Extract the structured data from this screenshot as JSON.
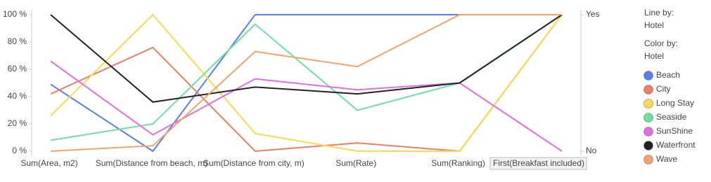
{
  "chart_data": {
    "type": "parallel",
    "categories": [
      "Sum(Area, m2)",
      "Sum(Distance from beach, m)",
      "Sum(Distance from city, m)",
      "Sum(Rate)",
      "Sum(Ranking)",
      "First(Breakfast included)"
    ],
    "ylim": [
      0,
      100
    ],
    "yticks": [
      {
        "value": 0,
        "label": "0 %"
      },
      {
        "value": 20,
        "label": "20 %"
      },
      {
        "value": 40,
        "label": "40 %"
      },
      {
        "value": 60,
        "label": "60 %"
      },
      {
        "value": 80,
        "label": "80 %"
      },
      {
        "value": 100,
        "label": "100 %"
      }
    ],
    "y2lim": [
      0,
      100
    ],
    "y2ticks": [
      {
        "value": 0,
        "label": "No"
      },
      {
        "value": 100,
        "label": "Yes"
      }
    ],
    "legend": {
      "line_by_label": "Line by:",
      "line_by": "Hotel",
      "color_by_label": "Color by:",
      "color_by": "Hotel"
    },
    "series": [
      {
        "name": "Beach",
        "color": "#5b7ee8",
        "values": [
          49,
          0,
          100,
          100,
          100,
          100
        ]
      },
      {
        "name": "City",
        "color": "#f07c64",
        "values": [
          42,
          76,
          0,
          6,
          0,
          100
        ]
      },
      {
        "name": "Long Stay",
        "color": "#f9d94f",
        "values": [
          26,
          100,
          13,
          0,
          0,
          100
        ]
      },
      {
        "name": "Seaside",
        "color": "#6fe0a0",
        "values": [
          8,
          20,
          93,
          30,
          50,
          100
        ]
      },
      {
        "name": "SunShine",
        "color": "#e06ee0",
        "values": [
          66,
          12,
          53,
          45,
          50,
          0
        ]
      },
      {
        "name": "Waterfront",
        "color": "#222222",
        "values": [
          100,
          36,
          47,
          42,
          50,
          100
        ]
      },
      {
        "name": "Wave",
        "color": "#f4a26a",
        "values": [
          0,
          4,
          73,
          62,
          100,
          100
        ]
      }
    ]
  }
}
